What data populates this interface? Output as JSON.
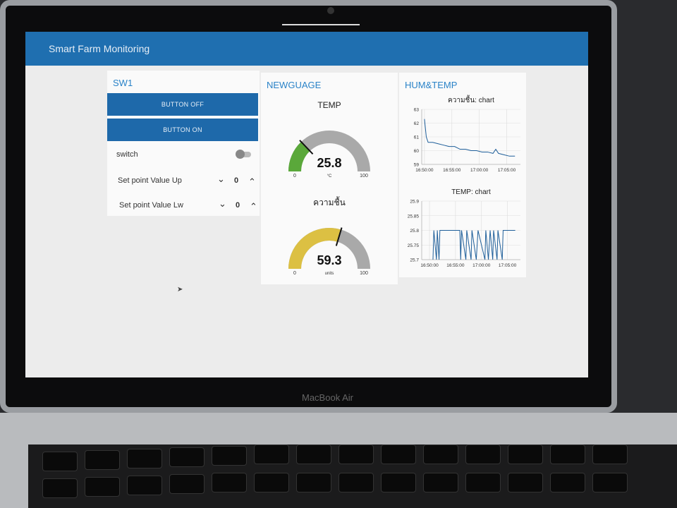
{
  "header": {
    "title": "Smart Farm Monitoring"
  },
  "sw1": {
    "title": "SW1",
    "buttons": [
      "BUTTON OFF",
      "BUTTON ON"
    ],
    "switch_label": "switch",
    "numerics": [
      {
        "label": "Set point Value Up",
        "value": 0
      },
      {
        "label": "Set point Value Lw",
        "value": 0
      }
    ]
  },
  "newguage": {
    "title": "NEWGUAGE",
    "gauges": [
      {
        "title": "TEMP",
        "value": 25.8,
        "min": 0,
        "max": 100,
        "units": "°C",
        "color": "#5aa83a"
      },
      {
        "title": "ความชื้น",
        "value": 59.3,
        "min": 0,
        "max": 100,
        "units": "units",
        "color": "#dcc043"
      }
    ]
  },
  "humtemp": {
    "title": "HUM&TEMP",
    "charts": [
      {
        "type": "line",
        "title": "ความชื้น: chart",
        "color": "#1f5f9a",
        "x": [
          "16:50:00",
          "16:50:20",
          "16:50:40",
          "16:51:30",
          "16:52:30",
          "16:53:30",
          "16:54:30",
          "16:55:30",
          "16:56:30",
          "16:57:30",
          "16:58:30",
          "16:59:30",
          "17:00:30",
          "17:01:30",
          "17:02:30",
          "17:03:00",
          "17:03:30",
          "17:04:30",
          "17:05:30",
          "17:06:30"
        ],
        "values": [
          62.3,
          61.0,
          60.6,
          60.6,
          60.5,
          60.4,
          60.3,
          60.3,
          60.1,
          60.1,
          60.0,
          60.0,
          59.9,
          59.9,
          59.8,
          60.1,
          59.8,
          59.7,
          59.6,
          59.6
        ],
        "xlim": [
          "16:49:30",
          "17:07:30"
        ],
        "xticks": [
          "16:50:00",
          "16:55:00",
          "17:00:00",
          "17:05:00"
        ],
        "ylim": [
          59,
          63
        ],
        "yticks": [
          59,
          60,
          61,
          62,
          63
        ],
        "grid": true
      },
      {
        "type": "line",
        "title": "TEMP: chart",
        "color": "#1f5f9a",
        "x": [
          "16:50:40",
          "16:50:50",
          "16:51:20",
          "16:51:30",
          "16:51:50",
          "16:52:00",
          "16:55:50",
          "16:56:00",
          "16:56:10",
          "16:57:00",
          "16:57:10",
          "16:58:00",
          "16:58:10",
          "16:59:00",
          "16:59:20",
          "17:00:40",
          "17:00:50",
          "17:01:20",
          "17:01:40",
          "17:02:10",
          "17:02:20",
          "17:03:00",
          "17:03:10",
          "17:04:00",
          "17:04:10",
          "17:06:30"
        ],
        "values": [
          25.7,
          25.8,
          25.7,
          25.8,
          25.7,
          25.8,
          25.8,
          25.7,
          25.8,
          25.7,
          25.8,
          25.7,
          25.8,
          25.7,
          25.8,
          25.7,
          25.8,
          25.7,
          25.8,
          25.7,
          25.8,
          25.7,
          25.8,
          25.7,
          25.8,
          25.8
        ],
        "xlim": [
          "16:48:30",
          "17:07:30"
        ],
        "xticks": [
          "16:50:00",
          "16:55:00",
          "17:00:00",
          "17:05:00"
        ],
        "ylim": [
          25.7,
          25.9
        ],
        "yticks": [
          25.7,
          25.75,
          25.8,
          25.85,
          25.9
        ],
        "grid": true
      }
    ]
  },
  "laptop": {
    "label": "MacBook Air"
  }
}
